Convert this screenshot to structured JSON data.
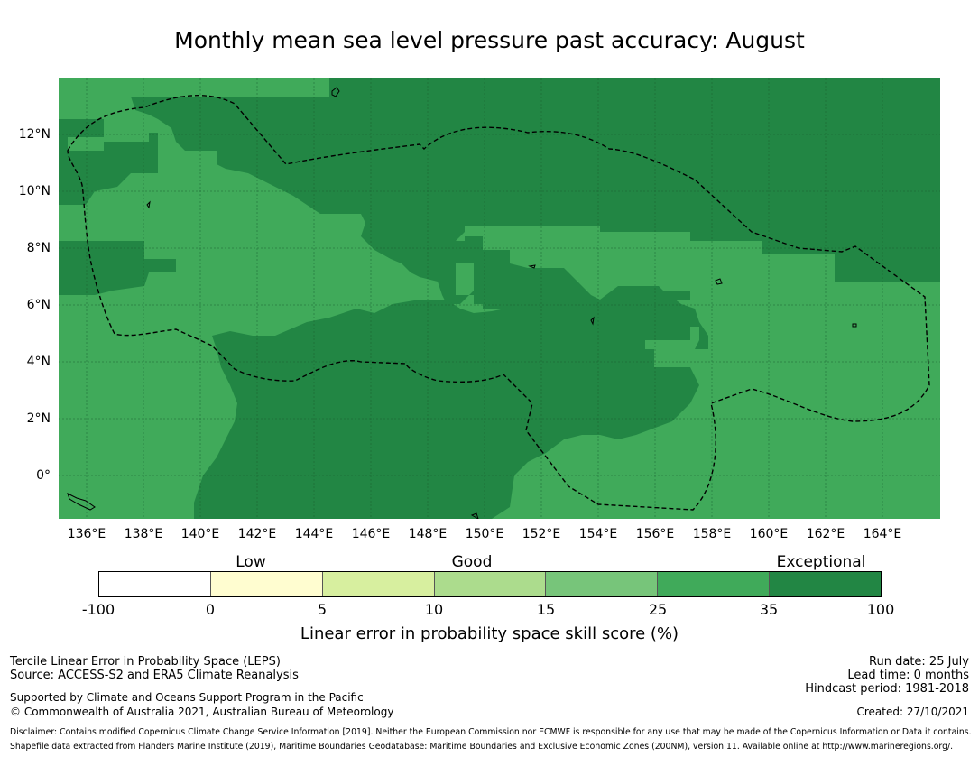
{
  "title": "Monthly mean sea level pressure past accuracy: August",
  "map": {
    "lat_labels": [
      "12°N",
      "10°N",
      "8°N",
      "6°N",
      "4°N",
      "2°N",
      "0°"
    ],
    "lon_labels": [
      "136°E",
      "138°E",
      "140°E",
      "142°E",
      "144°E",
      "146°E",
      "148°E",
      "150°E",
      "152°E",
      "154°E",
      "156°E",
      "158°E",
      "160°E",
      "162°E",
      "164°E"
    ],
    "colors": {
      "category_25_35": "#40aa5a",
      "category_35_100": "#228644",
      "boundary_line": "#000000",
      "gridline": "#1a5e2f"
    }
  },
  "legend": {
    "category_labels": [
      "Low",
      "Good",
      "Exceptional"
    ],
    "bins": [
      {
        "from": "-100",
        "to": "0",
        "color": "#ffffff"
      },
      {
        "from": "0",
        "to": "5",
        "color": "#fffdd0"
      },
      {
        "from": "5",
        "to": "10",
        "color": "#d7ef9f"
      },
      {
        "from": "10",
        "to": "15",
        "color": "#acdc8d"
      },
      {
        "from": "15",
        "to": "25",
        "color": "#77c57a"
      },
      {
        "from": "25",
        "to": "35",
        "color": "#40aa5a"
      },
      {
        "from": "35",
        "to": "100",
        "color": "#228644"
      }
    ],
    "tick_labels": [
      "-100",
      "0",
      "5",
      "10",
      "15",
      "25",
      "35",
      "100"
    ],
    "axis_label": "Linear error in probability space skill score (%)"
  },
  "footer": {
    "method": "Tercile Linear Error in Probability Space (LEPS)",
    "source": "Source: ACCESS-S2 and ERA5 Climate Reanalysis",
    "supported": "Supported by Climate and Oceans Support Program in the Pacific",
    "copyright": "© Commonwealth of Australia 2021, Australian Bureau of Meteorology",
    "run_date": "Run date: 25 July",
    "lead_time": "Lead time: 0 months",
    "hindcast": "Hindcast period: 1981-2018",
    "created": "Created: 27/10/2021",
    "disclaimer": "Disclaimer: Contains modified Copernicus Climate Change Service Information [2019]. Neither the European Commission nor ECMWF is responsible for any use that may be made of the Copernicus Information or Data it contains.",
    "shapefile": "Shapefile data extracted from Flanders Marine Institute (2019), Maritime Boundaries Geodatabase: Maritime Boundaries and Exclusive Economic Zones (200NM), version 11. Available online at http://www.marineregions.org/."
  }
}
